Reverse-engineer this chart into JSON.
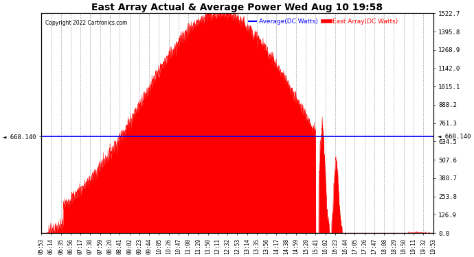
{
  "title": "East Array Actual & Average Power Wed Aug 10 19:58",
  "copyright": "Copyright 2022 Cartronics.com",
  "legend_avg": "Average(DC Watts)",
  "legend_east": "East Array(DC Watts)",
  "avg_value": 668.14,
  "avg_label": "668.140",
  "y_right_ticks": [
    0.0,
    126.9,
    253.8,
    380.7,
    507.6,
    634.5,
    761.3,
    888.2,
    1015.1,
    1142.0,
    1268.9,
    1395.8,
    1522.7
  ],
  "x_labels": [
    "05:53",
    "06:14",
    "06:35",
    "06:56",
    "07:17",
    "07:38",
    "07:59",
    "08:20",
    "08:41",
    "09:02",
    "09:23",
    "09:44",
    "10:05",
    "10:26",
    "10:47",
    "11:08",
    "11:29",
    "11:50",
    "12:11",
    "12:32",
    "12:53",
    "13:14",
    "13:35",
    "13:56",
    "14:17",
    "14:38",
    "14:59",
    "15:20",
    "15:41",
    "16:02",
    "16:23",
    "16:44",
    "17:05",
    "17:26",
    "17:47",
    "18:08",
    "18:29",
    "18:50",
    "19:11",
    "19:32",
    "19:53"
  ],
  "bg_color": "#ffffff",
  "fill_color": "#ff0000",
  "avg_line_color": "#0000ff",
  "grid_color": "#aaaaaa",
  "title_color": "#000000",
  "copyright_color": "#000000",
  "legend_avg_color": "#0000ff",
  "legend_east_color": "#ff0000",
  "ymax": 1522.7,
  "ymin": 0.0
}
